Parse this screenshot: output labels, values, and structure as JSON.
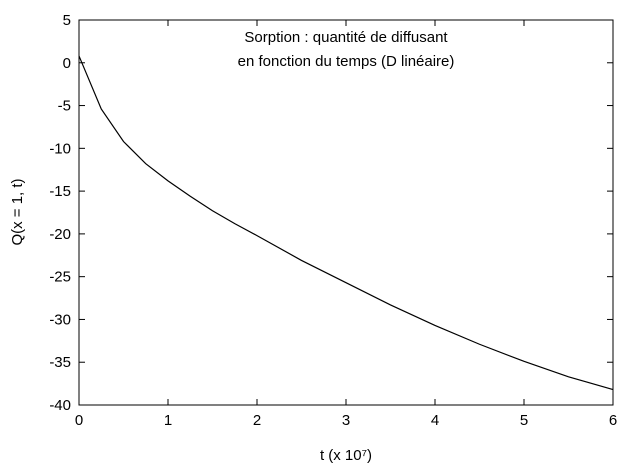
{
  "chart_data": {
    "type": "line",
    "title": [
      "Sorption : quantité de diffusant",
      "en fonction du temps (D linéaire)"
    ],
    "x_label": "t (x 10⁷)",
    "y_label": "Q(x = 1, t)",
    "x": [
      0,
      0.25,
      0.5,
      0.75,
      1,
      1.25,
      1.5,
      1.75,
      2,
      2.5,
      3,
      3.5,
      4,
      4.5,
      5,
      5.5,
      6
    ],
    "series": [
      {
        "name": "Q",
        "color": "#000000",
        "values": [
          0.8,
          -5.4,
          -9.2,
          -11.8,
          -13.8,
          -15.6,
          -17.3,
          -18.8,
          -20.2,
          -23.1,
          -25.7,
          -28.3,
          -30.7,
          -32.9,
          -34.9,
          -36.7,
          -38.2
        ]
      }
    ],
    "xlim": [
      0,
      6
    ],
    "xticks": [
      0,
      1,
      2,
      3,
      4,
      5,
      6
    ],
    "ylim": [
      -40,
      5
    ],
    "yticks": [
      -40,
      -35,
      -30,
      -25,
      -20,
      -15,
      -10,
      -5,
      0,
      5
    ]
  }
}
